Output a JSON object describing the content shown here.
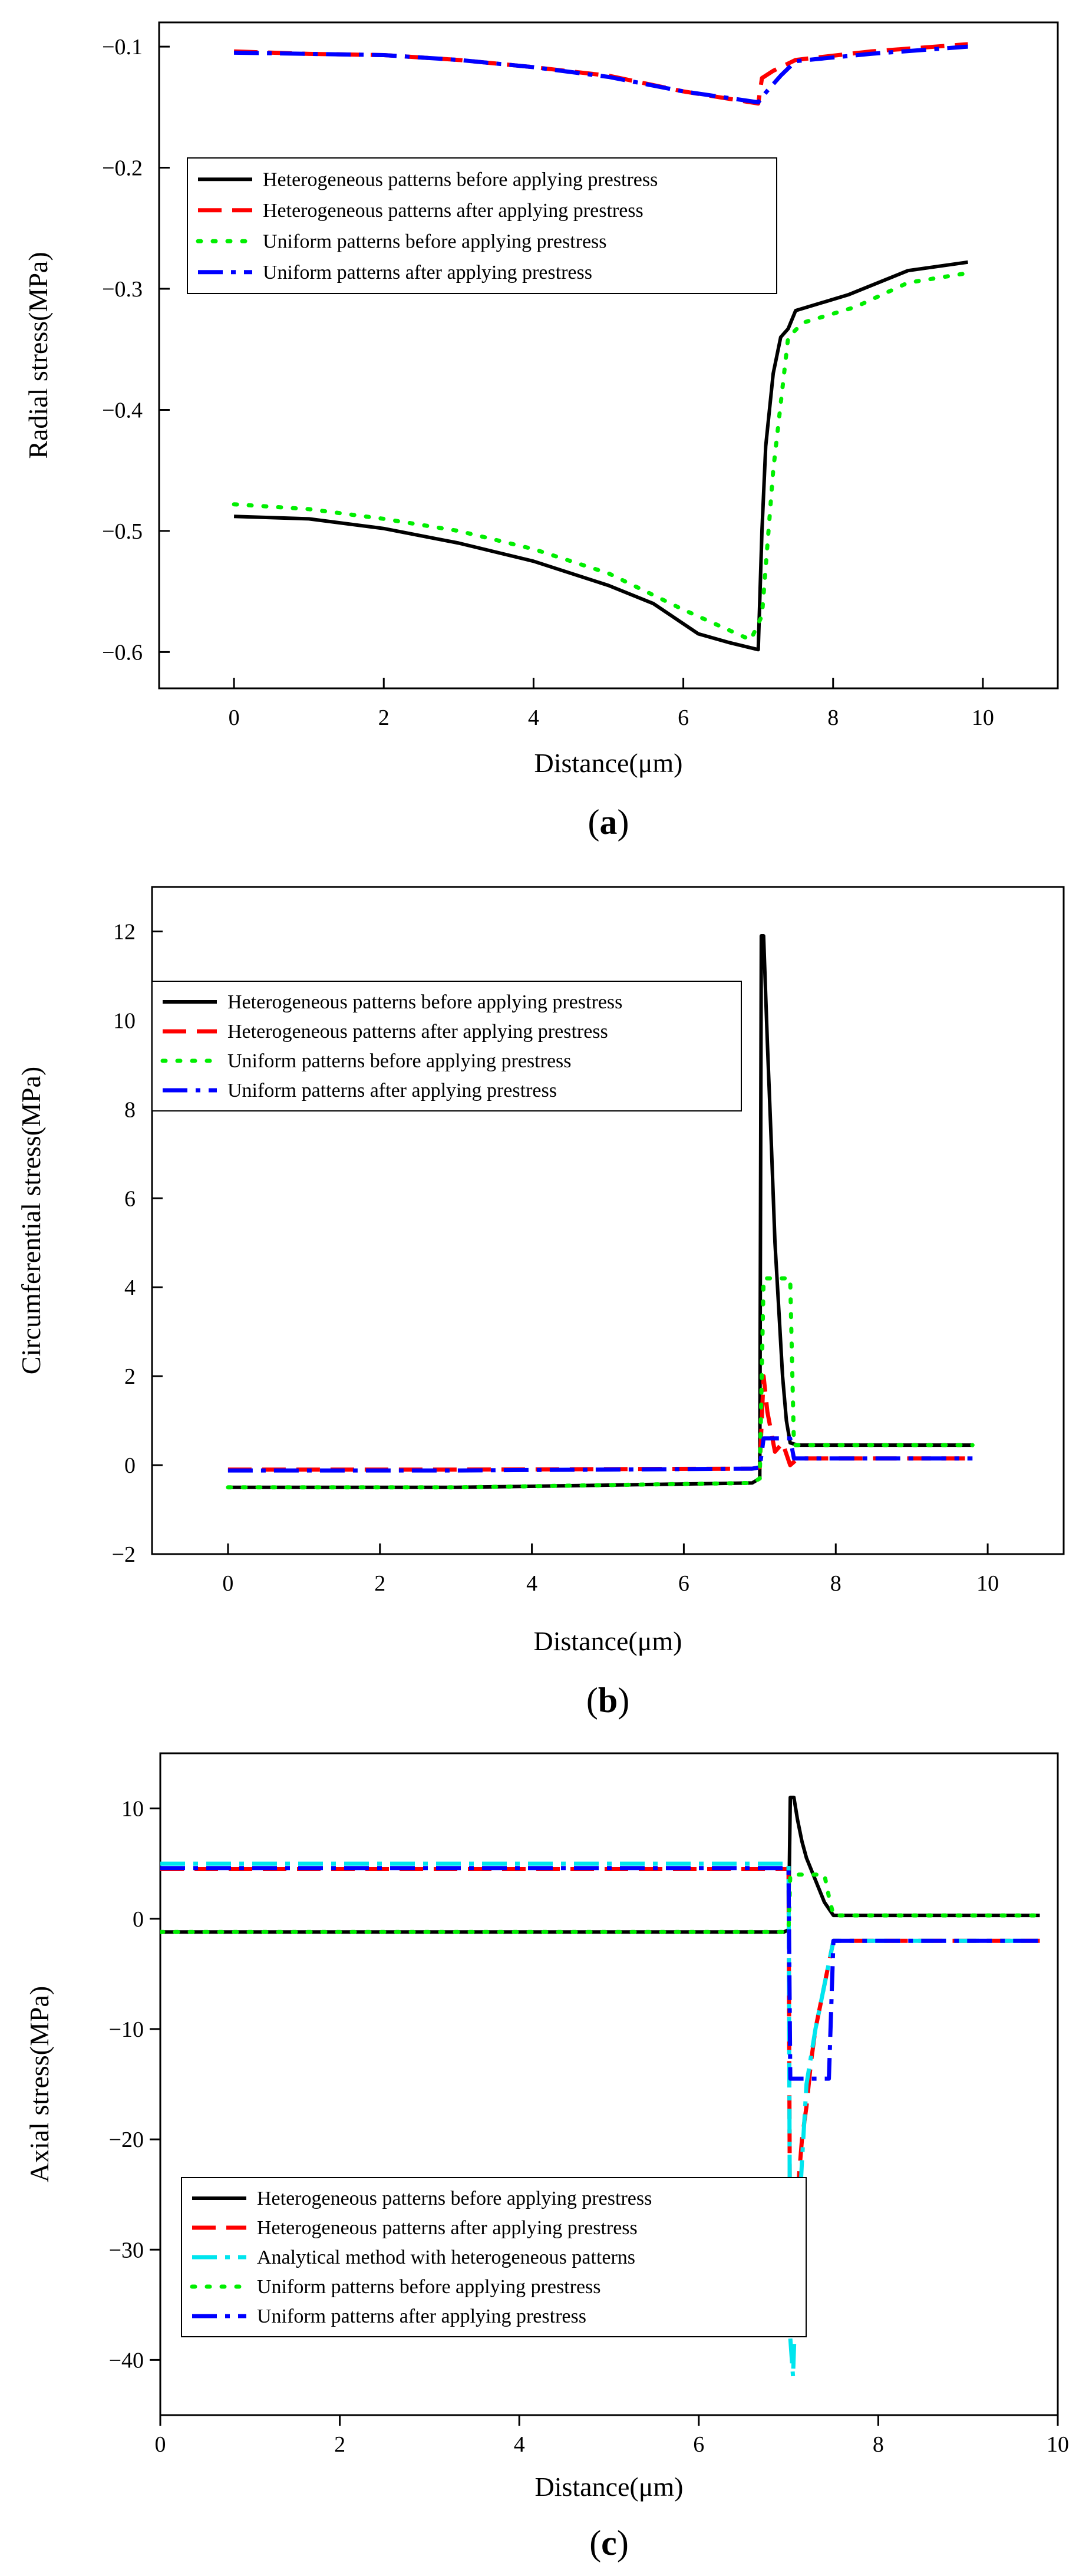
{
  "chart_data": [
    {
      "type": "line",
      "panel": "a",
      "xlabel": "Distance(μm)",
      "ylabel": "Radial stress(MPa)",
      "xlim": [
        -1.0,
        11.0
      ],
      "ylim": [
        -0.63,
        -0.08
      ],
      "xticks": [
        0,
        2,
        4,
        6,
        8,
        10
      ],
      "yticks": [
        -0.1,
        -0.2,
        -0.3,
        -0.4,
        -0.5,
        -0.6
      ],
      "xtick_labels": [
        "0",
        "2",
        "4",
        "6",
        "8",
        "10"
      ],
      "ytick_labels": [
        "−0.1",
        "−0.2",
        "−0.3",
        "−0.4",
        "−0.5",
        "−0.6"
      ],
      "legend_position": "center-left",
      "series": [
        {
          "name": "Heterogeneous patterns before applying prestress",
          "color": "#000000",
          "style": "solid",
          "x": [
            0,
            1,
            2,
            3,
            4,
            5,
            5.6,
            6.2,
            6.6,
            7.0,
            7.05,
            7.1,
            7.2,
            7.3,
            7.4,
            7.5,
            8.2,
            9.0,
            9.8
          ],
          "y": [
            -0.488,
            -0.49,
            -0.498,
            -0.51,
            -0.525,
            -0.545,
            -0.56,
            -0.585,
            -0.592,
            -0.598,
            -0.5,
            -0.43,
            -0.37,
            -0.34,
            -0.333,
            -0.318,
            -0.305,
            -0.285,
            -0.278
          ]
        },
        {
          "name": "Heterogeneous patterns after applying prestress",
          "color": "#ff0000",
          "style": "dash",
          "x": [
            0,
            1,
            2,
            3,
            4,
            5,
            6,
            7.0,
            7.05,
            7.2,
            7.5,
            8.5,
            9.8
          ],
          "y": [
            -0.104,
            -0.106,
            -0.107,
            -0.111,
            -0.117,
            -0.124,
            -0.137,
            -0.147,
            -0.126,
            -0.12,
            -0.111,
            -0.104,
            -0.098
          ]
        },
        {
          "name": "Uniform patterns before applying prestress",
          "color": "#00ee00",
          "style": "dot",
          "x": [
            0,
            1,
            2,
            3,
            4,
            5,
            6,
            6.9,
            7.05,
            7.2,
            7.4,
            7.6,
            8.3,
            9.0,
            9.8
          ],
          "y": [
            -0.478,
            -0.482,
            -0.49,
            -0.5,
            -0.515,
            -0.535,
            -0.565,
            -0.59,
            -0.57,
            -0.45,
            -0.34,
            -0.328,
            -0.315,
            -0.295,
            -0.287
          ]
        },
        {
          "name": "Uniform patterns after applying prestress",
          "color": "#0000ff",
          "style": "dashdot",
          "x": [
            0,
            1,
            2,
            3,
            4,
            5,
            6,
            7.0,
            7.1,
            7.3,
            7.5,
            8.5,
            9.8
          ],
          "y": [
            -0.105,
            -0.106,
            -0.107,
            -0.111,
            -0.117,
            -0.125,
            -0.137,
            -0.146,
            -0.138,
            -0.124,
            -0.112,
            -0.106,
            -0.1
          ]
        }
      ]
    },
    {
      "type": "line",
      "panel": "b",
      "xlabel": "Distance(μm)",
      "ylabel": "Circumferential stress(MPa)",
      "xlim": [
        -1.0,
        11.0
      ],
      "ylim": [
        -2,
        13
      ],
      "xticks": [
        0,
        2,
        4,
        6,
        8,
        10
      ],
      "yticks": [
        -2,
        0,
        2,
        4,
        6,
        8,
        10,
        12
      ],
      "xtick_labels": [
        "0",
        "2",
        "4",
        "6",
        "8",
        "10"
      ],
      "ytick_labels": [
        "−2",
        "0",
        "2",
        "4",
        "6",
        "8",
        "10",
        "12"
      ],
      "legend_position": "upper-left",
      "series": [
        {
          "name": "Heterogeneous patterns before applying prestress",
          "color": "#000000",
          "style": "solid",
          "x": [
            0,
            3,
            5,
            6.9,
            7.0,
            7.02,
            7.05,
            7.1,
            7.15,
            7.2,
            7.25,
            7.3,
            7.35,
            7.4,
            7.5,
            8.0,
            9.8
          ],
          "y": [
            -0.5,
            -0.5,
            -0.45,
            -0.4,
            -0.3,
            11.9,
            11.9,
            9.5,
            7.3,
            5.0,
            3.5,
            2.0,
            1.0,
            0.5,
            0.45,
            0.45,
            0.45
          ]
        },
        {
          "name": "Heterogeneous patterns after applying prestress",
          "color": "#ff0000",
          "style": "dash",
          "x": [
            0,
            3,
            6.9,
            7.0,
            7.05,
            7.1,
            7.2,
            7.3,
            7.4,
            7.5,
            8.0,
            9.8
          ],
          "y": [
            -0.1,
            -0.1,
            -0.08,
            -0.05,
            2.0,
            1.2,
            0.3,
            0.5,
            0.0,
            0.15,
            0.15,
            0.15
          ]
        },
        {
          "name": "Uniform patterns before applying prestress",
          "color": "#00ee00",
          "style": "dot",
          "x": [
            0,
            3,
            6.9,
            7.0,
            7.05,
            7.3,
            7.4,
            7.45,
            7.5,
            8.0,
            9.8
          ],
          "y": [
            -0.5,
            -0.5,
            -0.4,
            -0.3,
            4.2,
            4.2,
            4.2,
            0.45,
            0.45,
            0.45,
            0.45
          ]
        },
        {
          "name": "Uniform patterns after applying prestress",
          "color": "#0000ff",
          "style": "dashdot",
          "x": [
            0,
            3,
            6.9,
            7.0,
            7.05,
            7.4,
            7.45,
            8.0,
            9.8
          ],
          "y": [
            -0.12,
            -0.12,
            -0.08,
            -0.05,
            0.6,
            0.6,
            0.15,
            0.15,
            0.15
          ]
        }
      ]
    },
    {
      "type": "line",
      "panel": "c",
      "xlabel": "Distance(μm)",
      "ylabel": "Axial stress(MPa)",
      "xlim": [
        0,
        10
      ],
      "ylim": [
        -45,
        15
      ],
      "xticks": [
        0,
        2,
        4,
        6,
        8,
        10
      ],
      "yticks": [
        10,
        0,
        -10,
        -20,
        -30,
        -40
      ],
      "xtick_labels": [
        "0",
        "2",
        "4",
        "6",
        "8",
        "10"
      ],
      "ytick_labels": [
        "10",
        "0",
        "−10",
        "−20",
        "−30",
        "−40"
      ],
      "legend_position": "lower-left",
      "series": [
        {
          "name": "Heterogeneous patterns before applying prestress",
          "color": "#000000",
          "style": "solid",
          "x": [
            0,
            6.95,
            7.0,
            7.02,
            7.06,
            7.1,
            7.15,
            7.2,
            7.3,
            7.4,
            7.5,
            8.0,
            9.8
          ],
          "y": [
            -1.2,
            -1.2,
            -1.0,
            11.0,
            11.0,
            9.0,
            7.0,
            5.5,
            3.5,
            1.5,
            0.3,
            0.3,
            0.3
          ]
        },
        {
          "name": "Heterogeneous patterns after applying prestress",
          "color": "#ff0000",
          "style": "dash",
          "x": [
            0,
            6.95,
            7.0,
            7.02,
            7.05,
            7.1,
            7.15,
            7.2,
            7.25,
            7.3,
            7.4,
            7.5,
            8.0,
            9.8
          ],
          "y": [
            4.5,
            4.5,
            4.5,
            -36.0,
            -30.0,
            -25.0,
            -20.0,
            -17.0,
            -13.0,
            -10.0,
            -6.0,
            -2.0,
            -2.0,
            -2.0
          ]
        },
        {
          "name": "Analytical method with heterogeneous patterns",
          "color": "#00e5ee",
          "style": "dashdot",
          "x": [
            0,
            6.95,
            7.0,
            7.02,
            7.05,
            7.1,
            7.15,
            7.2,
            7.3,
            7.4,
            7.5,
            8.0,
            9.8
          ],
          "y": [
            5.0,
            5.0,
            5.0,
            -38.0,
            -41.5,
            -30.0,
            -22.0,
            -15.0,
            -10.0,
            -6.0,
            -2.0,
            -2.0,
            -2.0
          ]
        },
        {
          "name": "Uniform patterns before applying prestress",
          "color": "#00ee00",
          "style": "dot",
          "x": [
            0,
            6.95,
            7.0,
            7.02,
            7.4,
            7.45,
            7.5,
            8.0,
            9.8
          ],
          "y": [
            -1.2,
            -1.2,
            -1.0,
            4.0,
            4.0,
            2.0,
            0.3,
            0.3,
            0.3
          ]
        },
        {
          "name": "Uniform patterns after applying prestress",
          "color": "#0000ff",
          "style": "dashdot",
          "x": [
            0,
            6.95,
            7.0,
            7.02,
            7.45,
            7.5,
            8.0,
            9.8
          ],
          "y": [
            4.6,
            4.6,
            4.6,
            -14.5,
            -14.5,
            -2.0,
            -2.0,
            -2.0
          ]
        }
      ]
    }
  ]
}
